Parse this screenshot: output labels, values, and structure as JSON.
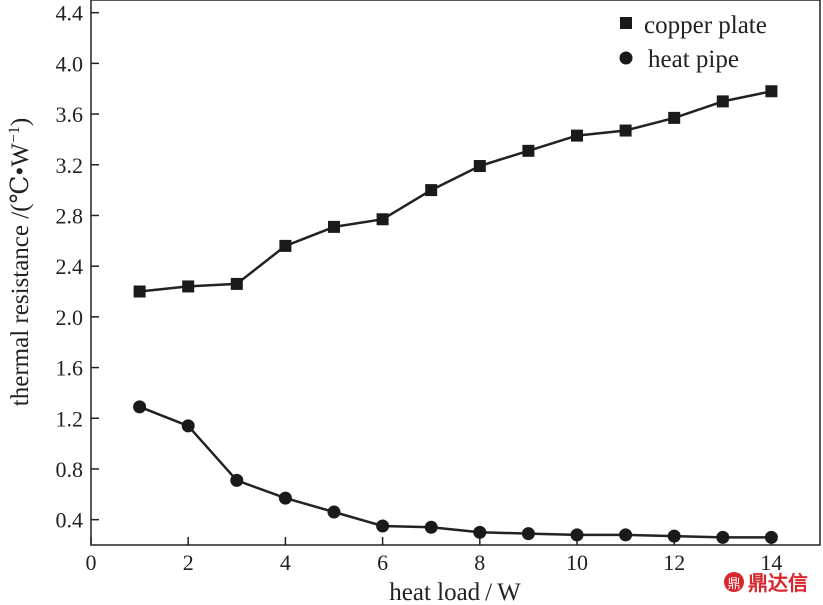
{
  "chart_data": {
    "type": "line",
    "xlabel": "heat load / W",
    "ylabel_main": "thermal resistance /(℃•W",
    "ylabel_sup": "−1",
    "ylabel_close": ")",
    "xlim": [
      0,
      15
    ],
    "ylim": [
      0.2,
      4.5
    ],
    "xticks": [
      0,
      2,
      4,
      6,
      8,
      10,
      12,
      14
    ],
    "xtick_labels": [
      "0",
      "2",
      "4",
      "6",
      "8",
      "10",
      "12",
      "14"
    ],
    "yticks": [
      0.4,
      0.8,
      1.2,
      1.6,
      2.0,
      2.4,
      2.8,
      3.2,
      3.6,
      4.0,
      4.4
    ],
    "ytick_labels": [
      "0.4",
      "0.8",
      "1.2",
      "1.6",
      "2.0",
      "2.4",
      "2.8",
      "3.2",
      "3.6",
      "4.0",
      "4.4"
    ],
    "grid": false,
    "legend_position": "top-right",
    "series": [
      {
        "name": "copper plate",
        "marker": "square",
        "x": [
          1,
          2,
          3,
          4,
          5,
          6,
          7,
          8,
          9,
          10,
          11,
          12,
          13,
          14
        ],
        "values": [
          2.2,
          2.24,
          2.26,
          2.56,
          2.71,
          2.77,
          3.0,
          3.19,
          3.31,
          3.43,
          3.47,
          3.57,
          3.7,
          3.78
        ]
      },
      {
        "name": "heat pipe",
        "marker": "circle",
        "x": [
          1,
          2,
          3,
          4,
          5,
          6,
          7,
          8,
          9,
          10,
          11,
          12,
          13,
          14
        ],
        "values": [
          1.29,
          1.14,
          0.71,
          0.57,
          0.46,
          0.35,
          0.34,
          0.3,
          0.29,
          0.28,
          0.28,
          0.27,
          0.26,
          0.26
        ]
      }
    ],
    "colors": {
      "line": "#222222",
      "marker": "#1a1a1a",
      "watermark": "#d8262b"
    }
  },
  "watermark": {
    "text": "鼎达信",
    "logo_glyph": "鼎"
  }
}
